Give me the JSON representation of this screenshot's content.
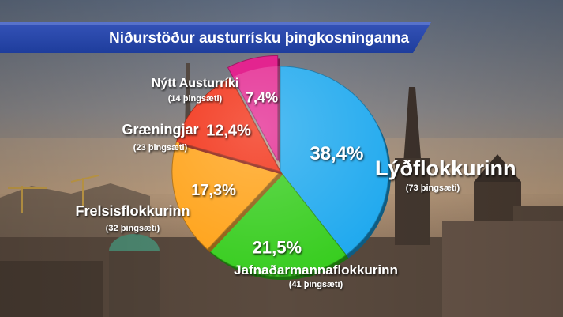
{
  "title": "Niðurstöður austurrísku þingkosninganna",
  "chart_data": {
    "type": "pie",
    "title": "Niðurstöður austurrísku þingkosninganna",
    "slices": [
      {
        "name": "Lýðflokkurinn",
        "value": 38.4,
        "pct_label": "38,4%",
        "seats_label": "(73 þingsæti)",
        "color": "#1aa7ee"
      },
      {
        "name": "Jafnaðarmannaflokkurinn",
        "value": 21.5,
        "pct_label": "21,5%",
        "seats_label": "(41 þingsæti)",
        "color": "#33cc1a"
      },
      {
        "name": "Frelsisflokkurinn",
        "value": 17.3,
        "pct_label": "17,3%",
        "seats_label": "(32 þingsæti)",
        "color": "#ffa012"
      },
      {
        "name": "Græningjar",
        "value": 12.4,
        "pct_label": "12,4%",
        "seats_label": "(23 þingsæti)",
        "color": "#f22a0e"
      },
      {
        "name": "Nýtt Austurríki",
        "value": 7.4,
        "pct_label": "7,4%",
        "seats_label": "(14 þingsæti)",
        "color": "#e3248f"
      }
    ]
  }
}
